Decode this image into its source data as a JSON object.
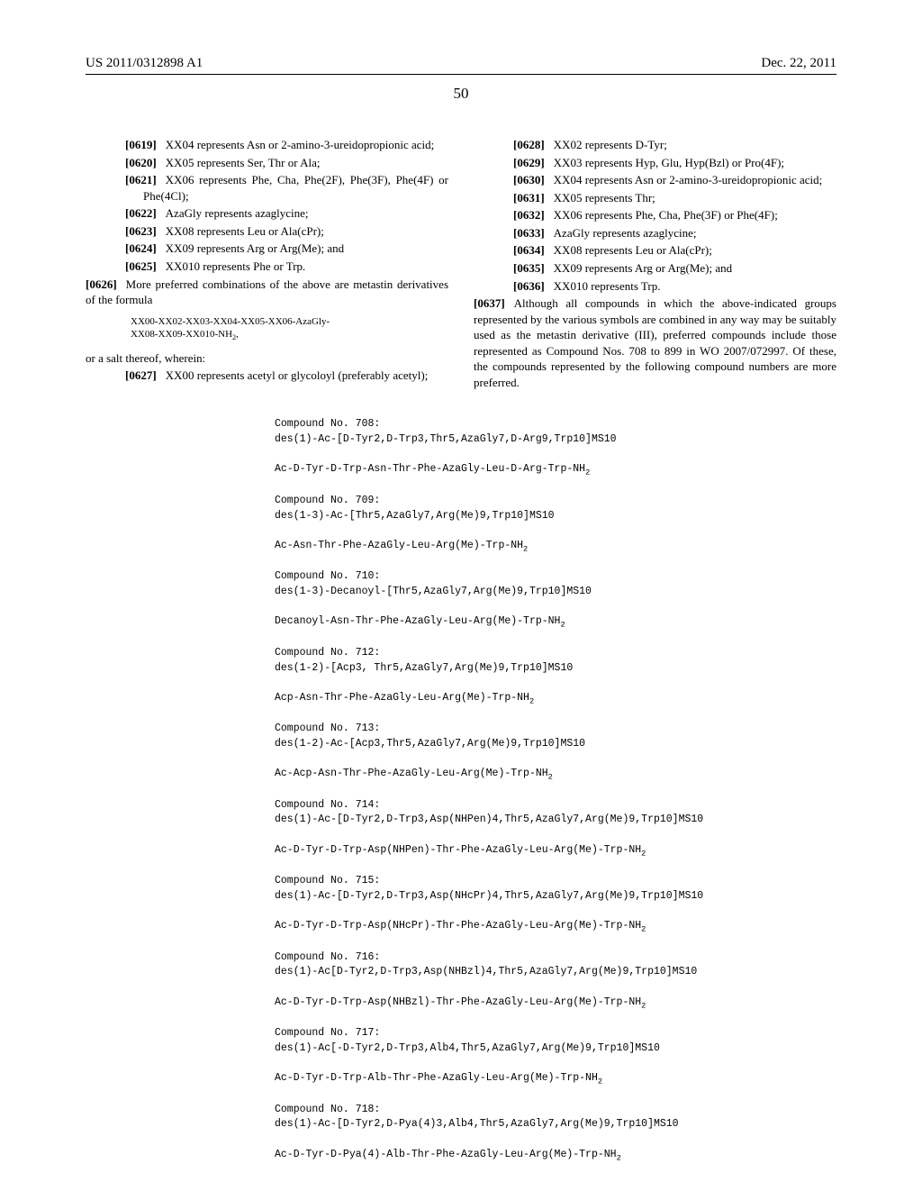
{
  "header": {
    "pub_no": "US 2011/0312898 A1",
    "date": "Dec. 22, 2011"
  },
  "page_number": "50",
  "left_col": [
    {
      "num": "[0619]",
      "text": "XX04 represents Asn or 2-amino-3-ureidopropionic acid;"
    },
    {
      "num": "[0620]",
      "text": "XX05 represents Ser, Thr or Ala;"
    },
    {
      "num": "[0621]",
      "text": "XX06 represents Phe, Cha, Phe(2F), Phe(3F), Phe(4F) or Phe(4Cl);"
    },
    {
      "num": "[0622]",
      "text": "AzaGly represents azaglycine;"
    },
    {
      "num": "[0623]",
      "text": "XX08 represents Leu or Ala(cPr);"
    },
    {
      "num": "[0624]",
      "text": "XX09 represents Arg or Arg(Me); and"
    },
    {
      "num": "[0625]",
      "text": "XX010 represents Phe or Trp."
    },
    {
      "num": "[0626]",
      "text": "More preferred combinations of the above are metastin derivatives of the formula",
      "flush": true
    }
  ],
  "formula": "XX00-XX02-XX03-XX04-XX05-XX06-AzaGly-XX08-XX09-XX010-NH",
  "formula_suffix": "2",
  "formula_tail": ",",
  "salt_line": "or a salt thereof, wherein:",
  "left_col_2": [
    {
      "num": "[0627]",
      "text": "XX00 represents acetyl or glycoloyl (preferably acetyl);"
    }
  ],
  "right_col": [
    {
      "num": "[0628]",
      "text": "XX02 represents D-Tyr;"
    },
    {
      "num": "[0629]",
      "text": "XX03 represents Hyp, Glu, Hyp(Bzl) or Pro(4F);"
    },
    {
      "num": "[0630]",
      "text": "XX04 represents Asn or 2-amino-3-ureidopropionic acid;"
    },
    {
      "num": "[0631]",
      "text": "XX05 represents Thr;"
    },
    {
      "num": "[0632]",
      "text": "XX06 represents Phe, Cha, Phe(3F) or Phe(4F);"
    },
    {
      "num": "[0633]",
      "text": "AzaGly represents azaglycine;"
    },
    {
      "num": "[0634]",
      "text": "XX08 represents Leu or Ala(cPr);"
    },
    {
      "num": "[0635]",
      "text": "XX09 represents Arg or Arg(Me); and"
    },
    {
      "num": "[0636]",
      "text": "XX010 represents Trp."
    },
    {
      "num": "[0637]",
      "text": "Although all compounds in which the above-indicated groups represented by the various symbols are combined in any way may be suitably used as the metastin derivative (III), preferred compounds include those represented as Compound Nos. 708 to 899 in WO 2007/072997. Of these, the compounds represented by the following compound numbers are more preferred.",
      "flush": true
    }
  ],
  "compounds": [
    {
      "title": "Compound No. 708:",
      "desc": "des(1)-Ac-[D-Tyr2,D-Trp3,Thr5,AzaGly7,D-Arg9,Trp10]MS10",
      "seq": "Ac-D-Tyr-D-Trp-Asn-Thr-Phe-AzaGly-Leu-D-Arg-Trp-NH"
    },
    {
      "title": "Compound No. 709:",
      "desc": "des(1-3)-Ac-[Thr5,AzaGly7,Arg(Me)9,Trp10]MS10",
      "seq": "Ac-Asn-Thr-Phe-AzaGly-Leu-Arg(Me)-Trp-NH"
    },
    {
      "title": "Compound No. 710:",
      "desc": "des(1-3)-Decanoyl-[Thr5,AzaGly7,Arg(Me)9,Trp10]MS10",
      "seq": "Decanoyl-Asn-Thr-Phe-AzaGly-Leu-Arg(Me)-Trp-NH"
    },
    {
      "title": "Compound No. 712:",
      "desc": "des(1-2)-[Acp3, Thr5,AzaGly7,Arg(Me)9,Trp10]MS10",
      "seq": "Acp-Asn-Thr-Phe-AzaGly-Leu-Arg(Me)-Trp-NH"
    },
    {
      "title": "Compound No. 713:",
      "desc": "des(1-2)-Ac-[Acp3,Thr5,AzaGly7,Arg(Me)9,Trp10]MS10",
      "seq": "Ac-Acp-Asn-Thr-Phe-AzaGly-Leu-Arg(Me)-Trp-NH"
    },
    {
      "title": "Compound No. 714:",
      "desc": "des(1)-Ac-[D-Tyr2,D-Trp3,Asp(NHPen)4,Thr5,AzaGly7,Arg(Me)9,Trp10]MS10",
      "seq": "Ac-D-Tyr-D-Trp-Asp(NHPen)-Thr-Phe-AzaGly-Leu-Arg(Me)-Trp-NH"
    },
    {
      "title": "Compound No. 715:",
      "desc": "des(1)-Ac-[D-Tyr2,D-Trp3,Asp(NHcPr)4,Thr5,AzaGly7,Arg(Me)9,Trp10]MS10",
      "seq": "Ac-D-Tyr-D-Trp-Asp(NHcPr)-Thr-Phe-AzaGly-Leu-Arg(Me)-Trp-NH"
    },
    {
      "title": "Compound No. 716:",
      "desc": "des(1)-Ac[D-Tyr2,D-Trp3,Asp(NHBzl)4,Thr5,AzaGly7,Arg(Me)9,Trp10]MS10",
      "seq": "Ac-D-Tyr-D-Trp-Asp(NHBzl)-Thr-Phe-AzaGly-Leu-Arg(Me)-Trp-NH"
    },
    {
      "title": "Compound No. 717:",
      "desc": "des(1)-Ac[-D-Tyr2,D-Trp3,Alb4,Thr5,AzaGly7,Arg(Me)9,Trp10]MS10",
      "seq": "Ac-D-Tyr-D-Trp-Alb-Thr-Phe-AzaGly-Leu-Arg(Me)-Trp-NH"
    },
    {
      "title": "Compound No. 718:",
      "desc": "des(1)-Ac-[D-Tyr2,D-Pya(4)3,Alb4,Thr5,AzaGly7,Arg(Me)9,Trp10]MS10",
      "seq": "Ac-D-Tyr-D-Pya(4)-Alb-Thr-Phe-AzaGly-Leu-Arg(Me)-Trp-NH"
    }
  ]
}
